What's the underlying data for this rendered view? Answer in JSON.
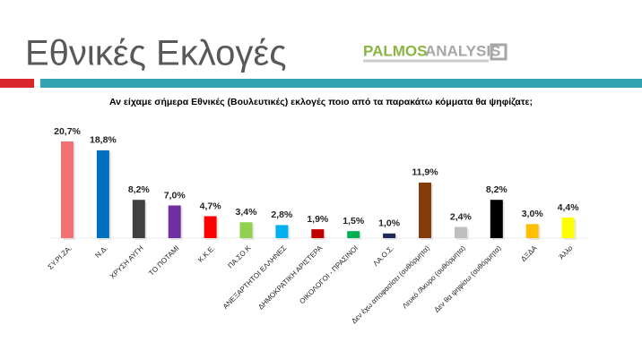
{
  "header": {
    "title": "Εθνικές Εκλογές",
    "logo_primary": "PALMOS",
    "logo_secondary": "ANALYSIS"
  },
  "chart_data": {
    "type": "bar",
    "title": "Αν είχαμε σήμερα Εθνικές (Βουλευτικές) εκλογές ποιο από τα παρακάτω κόμματα θα ψηφίζατε;",
    "categories": [
      "ΣΥ.ΡΙ.ΖΑ.",
      "Ν.Δ.",
      "ΧΡΥΣΗ ΑΥΓΗ",
      "ΤΟ ΠΟΤΑΜΙ",
      "Κ.Κ.Ε.",
      "ΠΑ.ΣΟ.Κ",
      "ΑΝΕΞΑΡΤΗΤΟΙ ΕΛΛΗΝΕΣ",
      "ΔΗΜΟΚΡΑΤΙΚΗ ΑΡΙΣΤΕΡΑ",
      "ΟΙΚΟΛΟΓΟΙ - ΠΡΑΣΙΝΟΙ",
      "ΛΑ.Ο.Σ.",
      "Δεν έχω αποφασίσει (αυθόρμητα)",
      "Λευκό /Άκυρο (αυθόρμητα)",
      "Δεν θα ψηφίσω (αυθόρμητα)",
      "ΔΞΔΑ",
      "Άλλο"
    ],
    "values": [
      20.7,
      18.8,
      8.2,
      7.0,
      4.7,
      3.4,
      2.8,
      1.9,
      1.5,
      1.0,
      11.9,
      2.4,
      8.2,
      3.0,
      4.4
    ],
    "value_labels": [
      "20,7%",
      "18,8%",
      "8,2%",
      "7,0%",
      "4,7%",
      "3,4%",
      "2,8%",
      "1,9%",
      "1,5%",
      "1,0%",
      "11,9%",
      "2,4%",
      "8,2%",
      "3,0%",
      "4,4%"
    ],
    "colors": [
      "#f07275",
      "#0070c0",
      "#404040",
      "#7030a0",
      "#ff0000",
      "#92d050",
      "#00b0f0",
      "#c00000",
      "#00b050",
      "#1f2a5a",
      "#843c0c",
      "#bfbfbf",
      "#000000",
      "#ffc000",
      "#ffff00"
    ]
  }
}
